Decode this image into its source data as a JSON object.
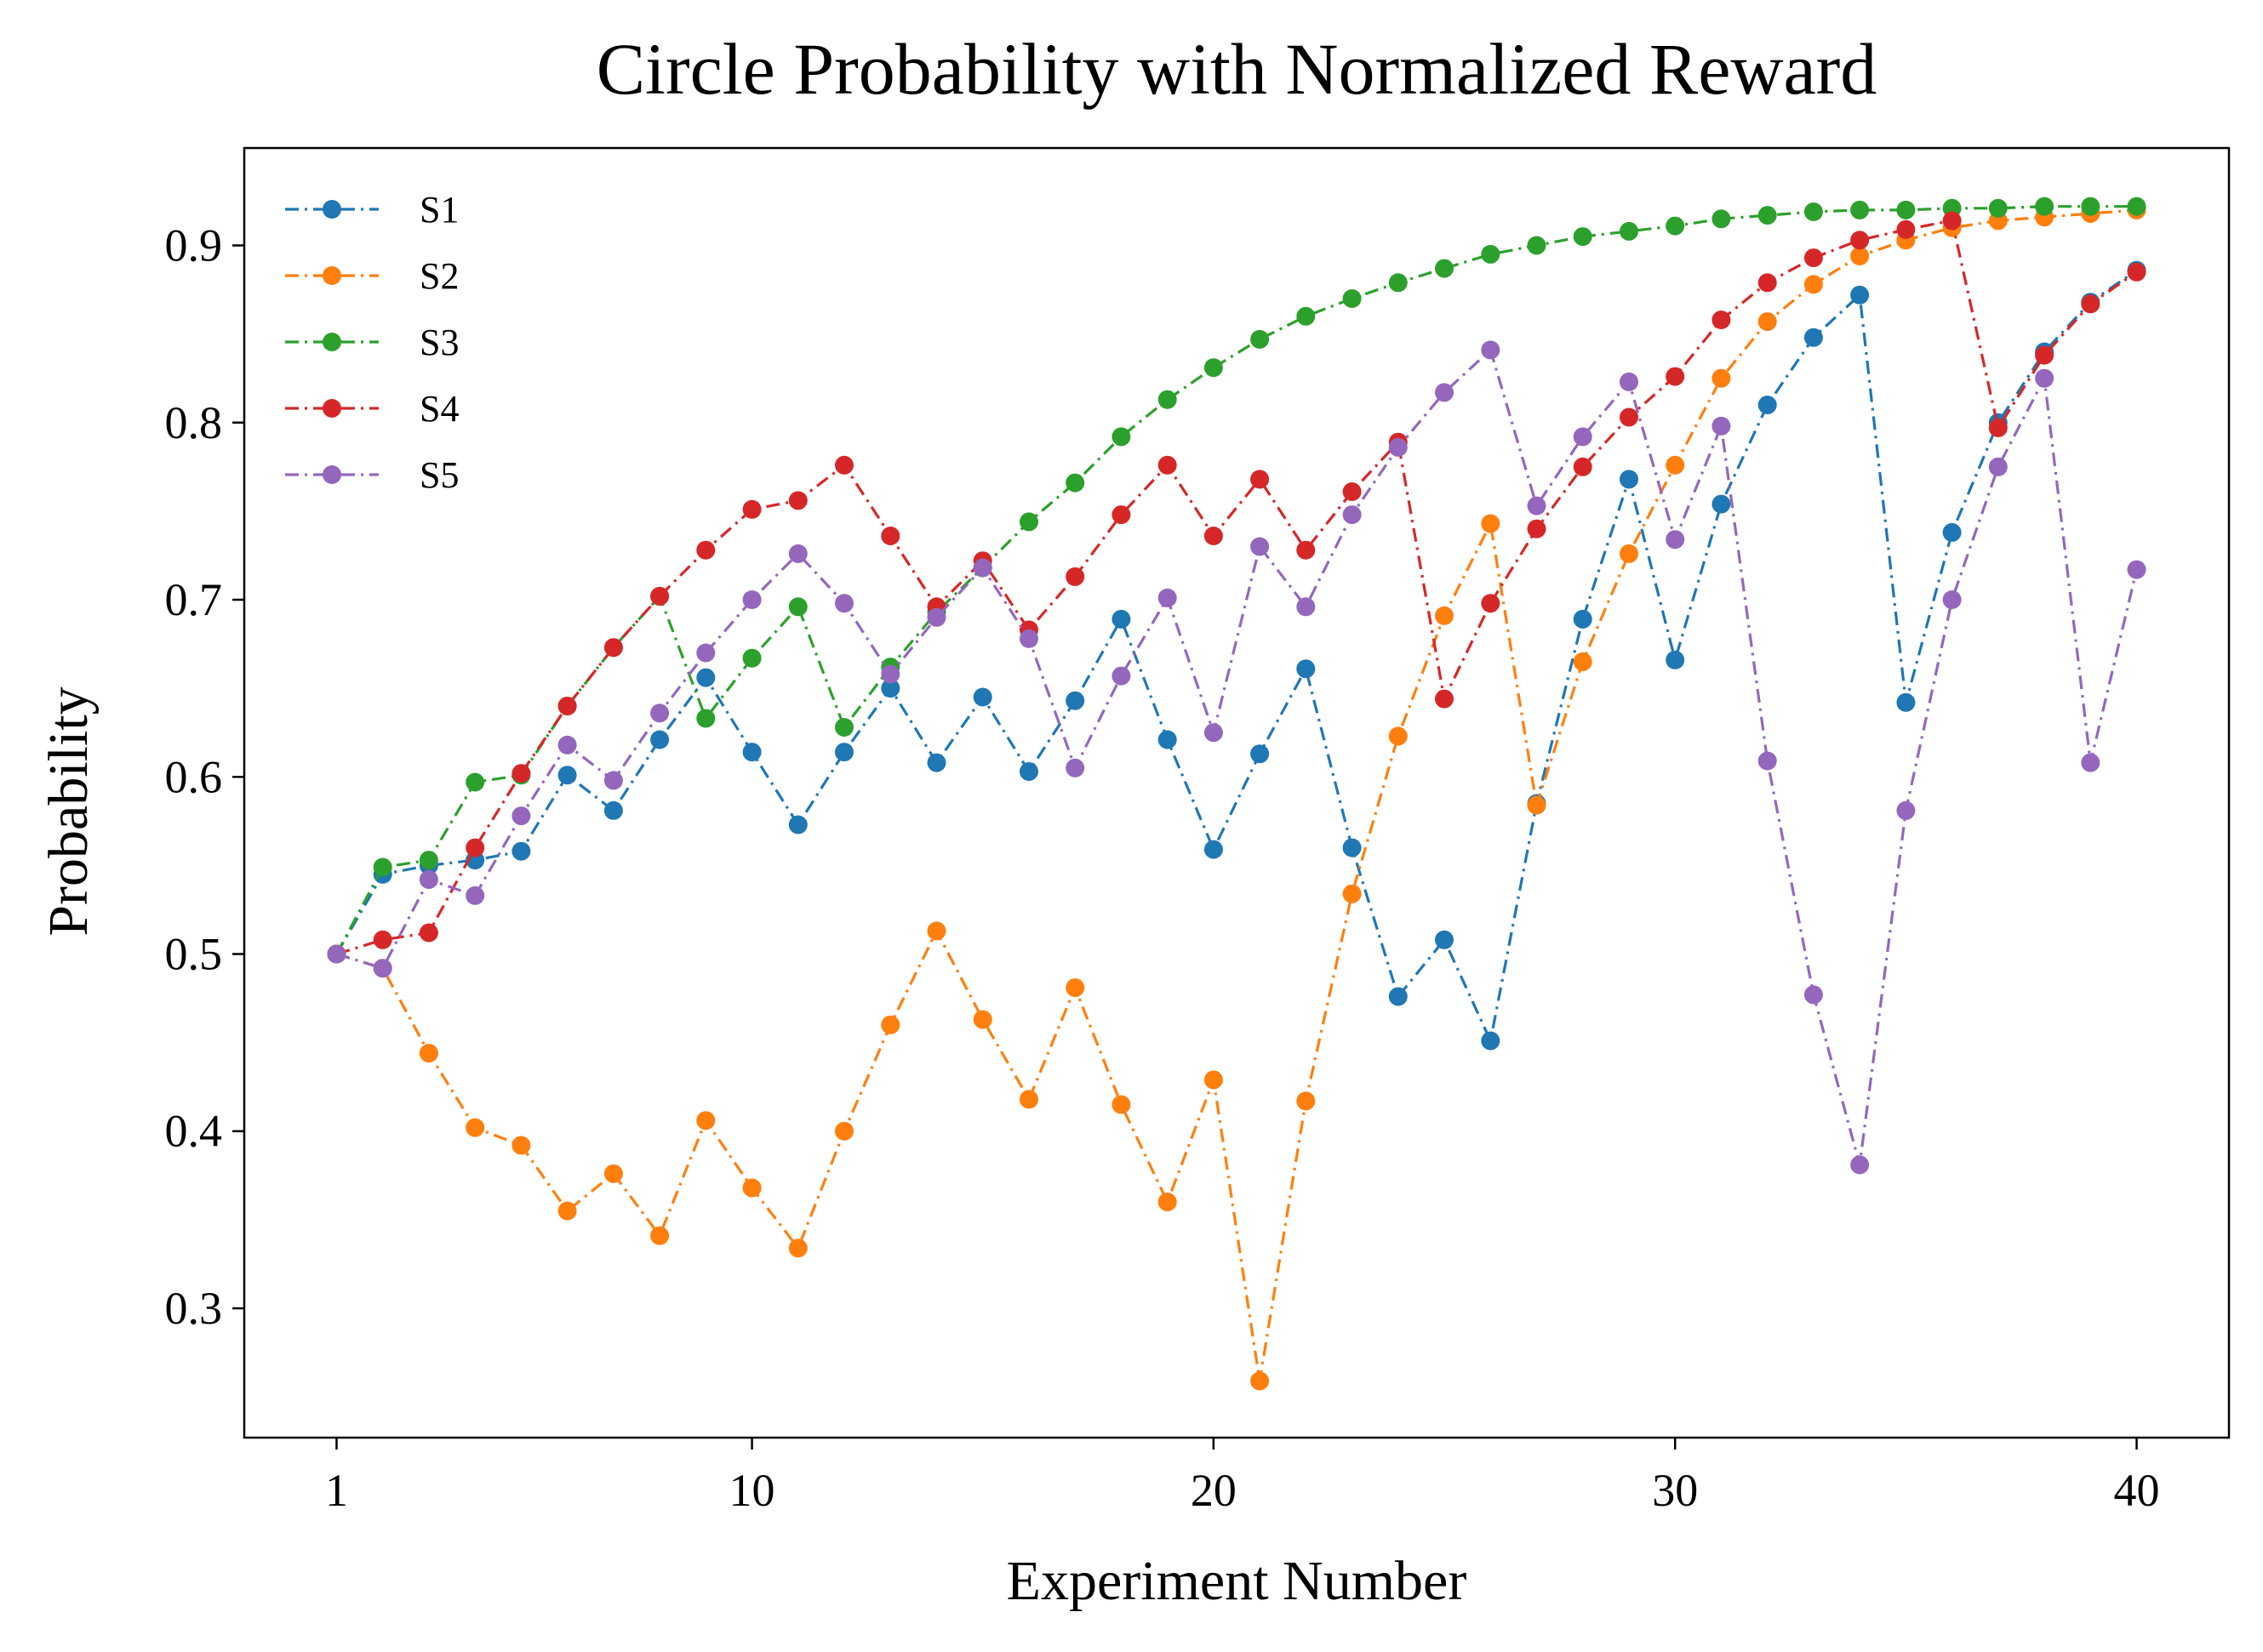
{
  "chart_data": {
    "type": "line",
    "title": "Circle Probability with Normalized Reward",
    "xlabel": "Experiment Number",
    "ylabel": "Probability",
    "xlim": [
      -1.0,
      42.0
    ],
    "ylim": [
      0.227,
      0.955
    ],
    "xticks": [
      {
        "value": 1,
        "label": "1"
      },
      {
        "value": 10,
        "label": "10"
      },
      {
        "value": 20,
        "label": "20"
      },
      {
        "value": 30,
        "label": "30"
      },
      {
        "value": 40,
        "label": "40"
      }
    ],
    "yticks": [
      {
        "value": 0.3,
        "label": "0.3"
      },
      {
        "value": 0.4,
        "label": "0.4"
      },
      {
        "value": 0.5,
        "label": "0.5"
      },
      {
        "value": 0.6,
        "label": "0.6"
      },
      {
        "value": 0.7,
        "label": "0.7"
      },
      {
        "value": 0.8,
        "label": "0.8"
      },
      {
        "value": 0.9,
        "label": "0.9"
      }
    ],
    "grid": false,
    "legend_position": "top-left",
    "line_style": "dash-dot",
    "marker": "circle",
    "x": [
      1,
      2,
      3,
      4,
      5,
      6,
      7,
      8,
      9,
      10,
      11,
      12,
      13,
      14,
      15,
      16,
      17,
      18,
      19,
      20,
      21,
      22,
      23,
      24,
      25,
      26,
      27,
      28,
      29,
      30,
      31,
      32,
      33,
      34,
      35,
      36,
      37,
      38,
      39,
      40
    ],
    "series": [
      {
        "name": "S1",
        "color": "#1f77b4",
        "values": [
          0.5,
          0.545,
          0.55,
          0.553,
          0.558,
          0.601,
          0.581,
          0.621,
          0.656,
          0.614,
          0.573,
          0.614,
          0.65,
          0.608,
          0.645,
          0.603,
          0.643,
          0.689,
          0.621,
          0.559,
          0.613,
          0.661,
          0.56,
          0.476,
          0.508,
          0.451,
          0.585,
          0.689,
          0.768,
          0.666,
          0.754,
          0.81,
          0.848,
          0.872,
          0.642,
          0.738,
          0.8,
          0.84,
          0.868,
          0.886
        ]
      },
      {
        "name": "S2",
        "color": "#ff7f0e",
        "values": [
          0.5,
          0.492,
          0.444,
          0.402,
          0.392,
          0.355,
          0.376,
          0.341,
          0.406,
          0.368,
          0.334,
          0.4,
          0.46,
          0.513,
          0.463,
          0.418,
          0.481,
          0.415,
          0.36,
          0.429,
          0.259,
          0.417,
          0.534,
          0.623,
          0.691,
          0.743,
          0.584,
          0.665,
          0.726,
          0.776,
          0.825,
          0.857,
          0.878,
          0.894,
          0.903,
          0.91,
          0.914,
          0.916,
          0.918,
          0.92
        ]
      },
      {
        "name": "S3",
        "color": "#2ca02c",
        "values": [
          0.5,
          0.549,
          0.553,
          0.597,
          0.601,
          0.64,
          0.673,
          0.702,
          0.633,
          0.667,
          0.696,
          0.628,
          0.662,
          0.693,
          0.718,
          0.744,
          0.766,
          0.792,
          0.813,
          0.831,
          0.847,
          0.86,
          0.87,
          0.879,
          0.887,
          0.895,
          0.9,
          0.905,
          0.908,
          0.911,
          0.915,
          0.917,
          0.919,
          0.92,
          0.92,
          0.921,
          0.921,
          0.922,
          0.922,
          0.922
        ]
      },
      {
        "name": "S4",
        "color": "#d62728",
        "values": [
          0.5,
          0.508,
          0.512,
          0.56,
          0.602,
          0.64,
          0.673,
          0.702,
          0.728,
          0.751,
          0.756,
          0.776,
          0.736,
          0.696,
          0.722,
          0.683,
          0.713,
          0.748,
          0.776,
          0.736,
          0.768,
          0.728,
          0.761,
          0.789,
          0.644,
          0.698,
          0.74,
          0.775,
          0.803,
          0.826,
          0.858,
          0.879,
          0.893,
          0.903,
          0.909,
          0.914,
          0.797,
          0.838,
          0.867,
          0.885
        ]
      },
      {
        "name": "S5",
        "color": "#9467bd",
        "values": [
          0.5,
          0.492,
          0.542,
          0.533,
          0.578,
          0.618,
          0.598,
          0.636,
          0.67,
          0.7,
          0.726,
          0.698,
          0.658,
          0.69,
          0.718,
          0.678,
          0.605,
          0.657,
          0.701,
          0.625,
          0.73,
          0.696,
          0.748,
          0.786,
          0.817,
          0.841,
          0.753,
          0.792,
          0.823,
          0.734,
          0.798,
          0.609,
          0.477,
          0.381,
          0.581,
          0.7,
          0.775,
          0.825,
          0.608,
          0.717
        ]
      }
    ]
  }
}
